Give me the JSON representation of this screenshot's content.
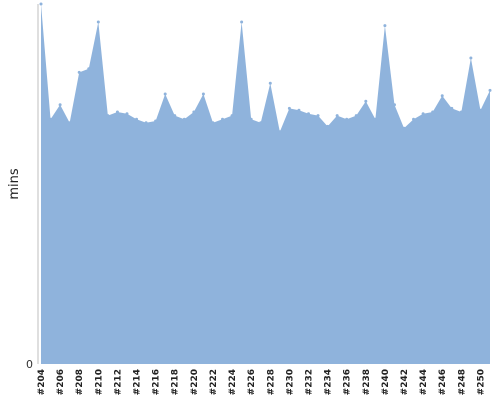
{
  "chart_data": {
    "type": "area",
    "title": "",
    "xlabel": "",
    "ylabel": "mins",
    "ylim": [
      0,
      100
    ],
    "ytick_labels": [
      "0"
    ],
    "categories": [
      "#204",
      "#205",
      "#206",
      "#207",
      "#208",
      "#209",
      "#210",
      "#211",
      "#212",
      "#213",
      "#214",
      "#215",
      "#216",
      "#217",
      "#218",
      "#219",
      "#220",
      "#221",
      "#222",
      "#223",
      "#224",
      "#225",
      "#226",
      "#227",
      "#228",
      "#229",
      "#230",
      "#231",
      "#232",
      "#233",
      "#234",
      "#235",
      "#236",
      "#237",
      "#238",
      "#239",
      "#240",
      "#241",
      "#242",
      "#243",
      "#244",
      "#245",
      "#246",
      "#247",
      "#248",
      "#249",
      "#250",
      "#251"
    ],
    "x_tick_labels": [
      "#204",
      "#206",
      "#208",
      "#210",
      "#212",
      "#214",
      "#216",
      "#218",
      "#220",
      "#222",
      "#224",
      "#226",
      "#228",
      "#230",
      "#232",
      "#234",
      "#236",
      "#238",
      "#240",
      "#242",
      "#244",
      "#246",
      "#248",
      "#250"
    ],
    "values": [
      100,
      68,
      72,
      67,
      81,
      82,
      95,
      69,
      70,
      69.5,
      68,
      67,
      67.5,
      75,
      69,
      68,
      70,
      75,
      67,
      68,
      69,
      95,
      68,
      67,
      78,
      64.5,
      71,
      70.5,
      69.5,
      69,
      66,
      69,
      68,
      69,
      73,
      68,
      94,
      72,
      65.5,
      68,
      69.5,
      70,
      74.5,
      71,
      70,
      85,
      70.5,
      76
    ],
    "color": "#8fb3dc"
  }
}
